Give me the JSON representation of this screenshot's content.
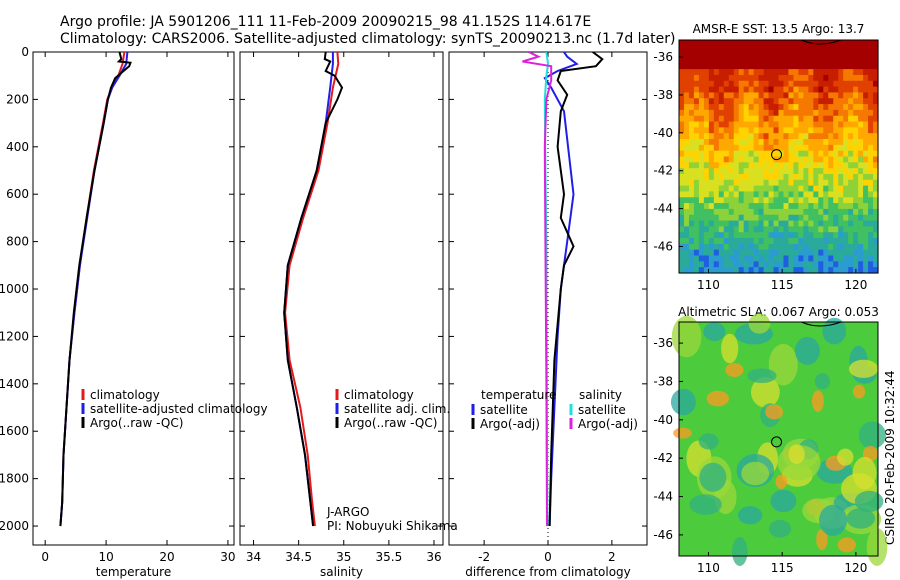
{
  "header": {
    "line1": "Argo profile: JA 5901206_111 11-Feb-2009 20090215_98 41.152S 114.617E",
    "line2": "Climatology: CARS2006. Satellite-adjusted climatology: synTS_20090213.nc (1.7d later)"
  },
  "credit": {
    "side": "CSIRO 20-Feb-2009 10:32:44",
    "jargo": "J-ARGO",
    "pi": "PI: Nobuyuki Shikama"
  },
  "colors": {
    "climatology": "#e41a1c",
    "satellite": "#1f1fe6",
    "argo": "#000000",
    "salinity_satellite": "#22dddd",
    "salinity_argo": "#dd22dd"
  },
  "chart_data": [
    {
      "id": "temperature",
      "type": "line",
      "xlabel": "temperature",
      "ylabel": "",
      "xlim": [
        -2,
        31
      ],
      "ylim": [
        2080,
        0
      ],
      "xticks": [
        0,
        10,
        20,
        30
      ],
      "yticks": [
        0,
        200,
        400,
        600,
        800,
        1000,
        1200,
        1400,
        1600,
        1800,
        2000
      ],
      "legend": [
        "climatology",
        "satellite-adjusted climatology",
        "Argo(..raw -QC)"
      ],
      "series": [
        {
          "name": "climatology",
          "color": "#e41a1c",
          "x": [
            13.0,
            12.7,
            12.0,
            11.0,
            10.2,
            9.5,
            8.0,
            6.8,
            5.7,
            4.8,
            4.0,
            3.5,
            3.0,
            2.8,
            2.5
          ],
          "y": [
            0,
            50,
            100,
            150,
            200,
            300,
            500,
            700,
            900,
            1100,
            1300,
            1500,
            1700,
            1900,
            2000
          ]
        },
        {
          "name": "satellite-adjusted climatology",
          "color": "#1f1fe6",
          "x": [
            13.5,
            13.3,
            12.2,
            11.0,
            10.3,
            9.6,
            8.1,
            6.9,
            5.7,
            4.8,
            4.0,
            3.5,
            3.0,
            2.8,
            2.5
          ],
          "y": [
            0,
            50,
            100,
            150,
            200,
            300,
            500,
            700,
            900,
            1100,
            1300,
            1500,
            1700,
            1900,
            2000
          ]
        },
        {
          "name": "Argo(..raw -QC)",
          "color": "#000000",
          "x": [
            12.2,
            12.5,
            12.1,
            14.0,
            13.8,
            11.5,
            10.8,
            10.3,
            9.6,
            8.1,
            6.8,
            5.6,
            4.7,
            4.0,
            3.5,
            3.0,
            2.8,
            2.5
          ],
          "y": [
            0,
            30,
            40,
            45,
            60,
            110,
            150,
            200,
            300,
            500,
            700,
            900,
            1100,
            1300,
            1500,
            1700,
            1900,
            2000
          ]
        }
      ]
    },
    {
      "id": "salinity",
      "type": "line",
      "xlabel": "salinity",
      "ylabel": "",
      "xlim": [
        33.85,
        36.1
      ],
      "ylim": [
        2080,
        0
      ],
      "xticks": [
        34,
        34.5,
        35,
        35.5,
        36
      ],
      "xtick_labels": [
        "34",
        "34.5",
        "35",
        "35.5",
        "36"
      ],
      "legend": [
        "climatology",
        "satellite adj. clim.",
        "Argo(..raw -QC)"
      ],
      "series": [
        {
          "name": "climatology",
          "color": "#e41a1c",
          "x": [
            34.93,
            34.94,
            34.88,
            34.82,
            34.72,
            34.55,
            34.4,
            34.35,
            34.4,
            34.52,
            34.6,
            34.65,
            34.68
          ],
          "y": [
            0,
            50,
            150,
            300,
            500,
            700,
            900,
            1100,
            1300,
            1500,
            1700,
            1900,
            2000
          ]
        },
        {
          "name": "satellite adj. clim.",
          "color": "#1f1fe6",
          "x": [
            34.88,
            34.88,
            34.85,
            34.8,
            34.7,
            34.53,
            34.38,
            34.34,
            34.38,
            34.48,
            34.57,
            34.63,
            34.66
          ],
          "y": [
            0,
            50,
            150,
            300,
            500,
            700,
            900,
            1100,
            1300,
            1500,
            1700,
            1900,
            2000
          ]
        },
        {
          "name": "Argo(..raw -QC)",
          "color": "#000000",
          "x": [
            34.8,
            34.79,
            34.85,
            34.8,
            34.9,
            34.98,
            34.93,
            34.8,
            34.7,
            34.53,
            34.38,
            34.34,
            34.38,
            34.48,
            34.57,
            34.63,
            34.66
          ],
          "y": [
            0,
            30,
            40,
            80,
            100,
            150,
            200,
            300,
            500,
            700,
            900,
            1100,
            1300,
            1500,
            1700,
            1900,
            2000
          ]
        }
      ]
    },
    {
      "id": "difference",
      "type": "line",
      "xlabel": "difference from climatology",
      "ylabel": "",
      "xlim": [
        -3.1,
        3.1
      ],
      "ylim": [
        2080,
        0
      ],
      "xticks": [
        -2,
        0,
        2
      ],
      "legend_groups": [
        {
          "title": "temperature",
          "items": [
            "satellite",
            "Argo(-adj)"
          ]
        },
        {
          "title": "salinity",
          "items": [
            "satellite",
            "Argo(-adj)"
          ]
        }
      ],
      "series": [
        {
          "name": "temperature satellite",
          "color": "#1f1fe6",
          "x": [
            0.5,
            0.6,
            0.9,
            0.3,
            -0.1,
            0.1,
            0.5,
            0.8,
            0.6,
            0.4,
            0.3,
            0.2,
            0.1,
            0.05
          ],
          "y": [
            0,
            20,
            50,
            80,
            110,
            150,
            250,
            600,
            800,
            1000,
            1200,
            1500,
            1800,
            2000
          ]
        },
        {
          "name": "temperature Argo(-adj)",
          "color": "#000000",
          "x": [
            1.4,
            1.7,
            1.5,
            0.4,
            0.3,
            0.6,
            0.4,
            0.3,
            0.5,
            0.4,
            0.8,
            0.5,
            0.4,
            0.2,
            0.1,
            0.05
          ],
          "y": [
            0,
            30,
            60,
            80,
            120,
            180,
            250,
            400,
            600,
            700,
            820,
            900,
            1000,
            1300,
            1700,
            2000
          ]
        },
        {
          "name": "salinity satellite",
          "color": "#22dddd",
          "x": [
            -0.05,
            0.0,
            -0.05,
            -0.1,
            -0.08,
            -0.05,
            -0.04,
            -0.03,
            -0.02
          ],
          "y": [
            0,
            50,
            100,
            200,
            500,
            800,
            1200,
            1600,
            2000
          ]
        },
        {
          "name": "salinity Argo(-adj)",
          "color": "#dd22dd",
          "x": [
            -0.6,
            -0.3,
            -0.8,
            0.1,
            0.1,
            -0.05,
            -0.1,
            -0.08,
            -0.05,
            -0.03
          ],
          "y": [
            0,
            20,
            40,
            60,
            120,
            200,
            400,
            800,
            1400,
            2000
          ]
        }
      ]
    },
    {
      "id": "sst_map",
      "type": "heatmap",
      "title": "AMSR-E SST: 13.5 Argo: 13.7",
      "xlim": [
        108,
        121.5
      ],
      "ylim": [
        -47.4,
        -35.1
      ],
      "xticks": [
        110,
        115,
        120
      ],
      "yticks": [
        -36,
        -38,
        -40,
        -42,
        -44,
        -46
      ],
      "marker": {
        "x": 114.617,
        "y": -41.152
      }
    },
    {
      "id": "sla_map",
      "type": "heatmap",
      "title": "Altimetric SLA: 0.067 Argo: 0.053",
      "xlim": [
        108,
        121.5
      ],
      "ylim": [
        -47.1,
        -34.9
      ],
      "xticks": [
        110,
        115,
        120
      ],
      "yticks": [
        -36,
        -38,
        -40,
        -42,
        -44,
        -46
      ],
      "marker": {
        "x": 114.617,
        "y": -41.152
      }
    }
  ]
}
